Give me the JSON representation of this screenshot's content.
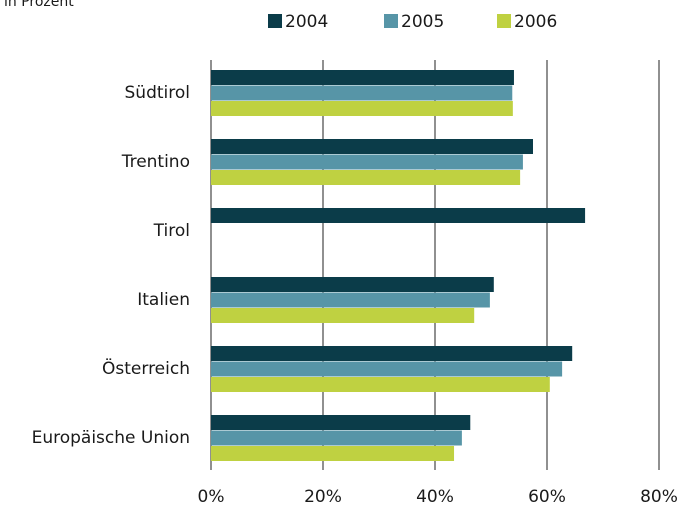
{
  "chart_data": {
    "type": "bar",
    "orientation": "horizontal",
    "subtitle": "in Prozent",
    "categories": [
      "Südtirol",
      "Trentino",
      "Tirol",
      "Italien",
      "Österreich",
      "Europäische Union"
    ],
    "series": [
      {
        "name": "2004",
        "color": "#0b3c49",
        "values": [
          54.1,
          57.5,
          66.8,
          50.5,
          64.5,
          46.3
        ]
      },
      {
        "name": "2005",
        "color": "#5795a7",
        "values": [
          53.8,
          55.7,
          null,
          49.8,
          62.7,
          44.8
        ]
      },
      {
        "name": "2006",
        "color": "#bfd141",
        "values": [
          53.9,
          55.2,
          null,
          47.0,
          60.5,
          43.4
        ]
      }
    ],
    "xlim": [
      0,
      80
    ],
    "xticks": [
      {
        "value": 0,
        "label": "0%"
      },
      {
        "value": 20,
        "label": "20%"
      },
      {
        "value": 40,
        "label": "40%"
      },
      {
        "value": 60,
        "label": "60%"
      },
      {
        "value": 80,
        "label": "80%"
      }
    ],
    "grid": true,
    "legend": "top"
  }
}
